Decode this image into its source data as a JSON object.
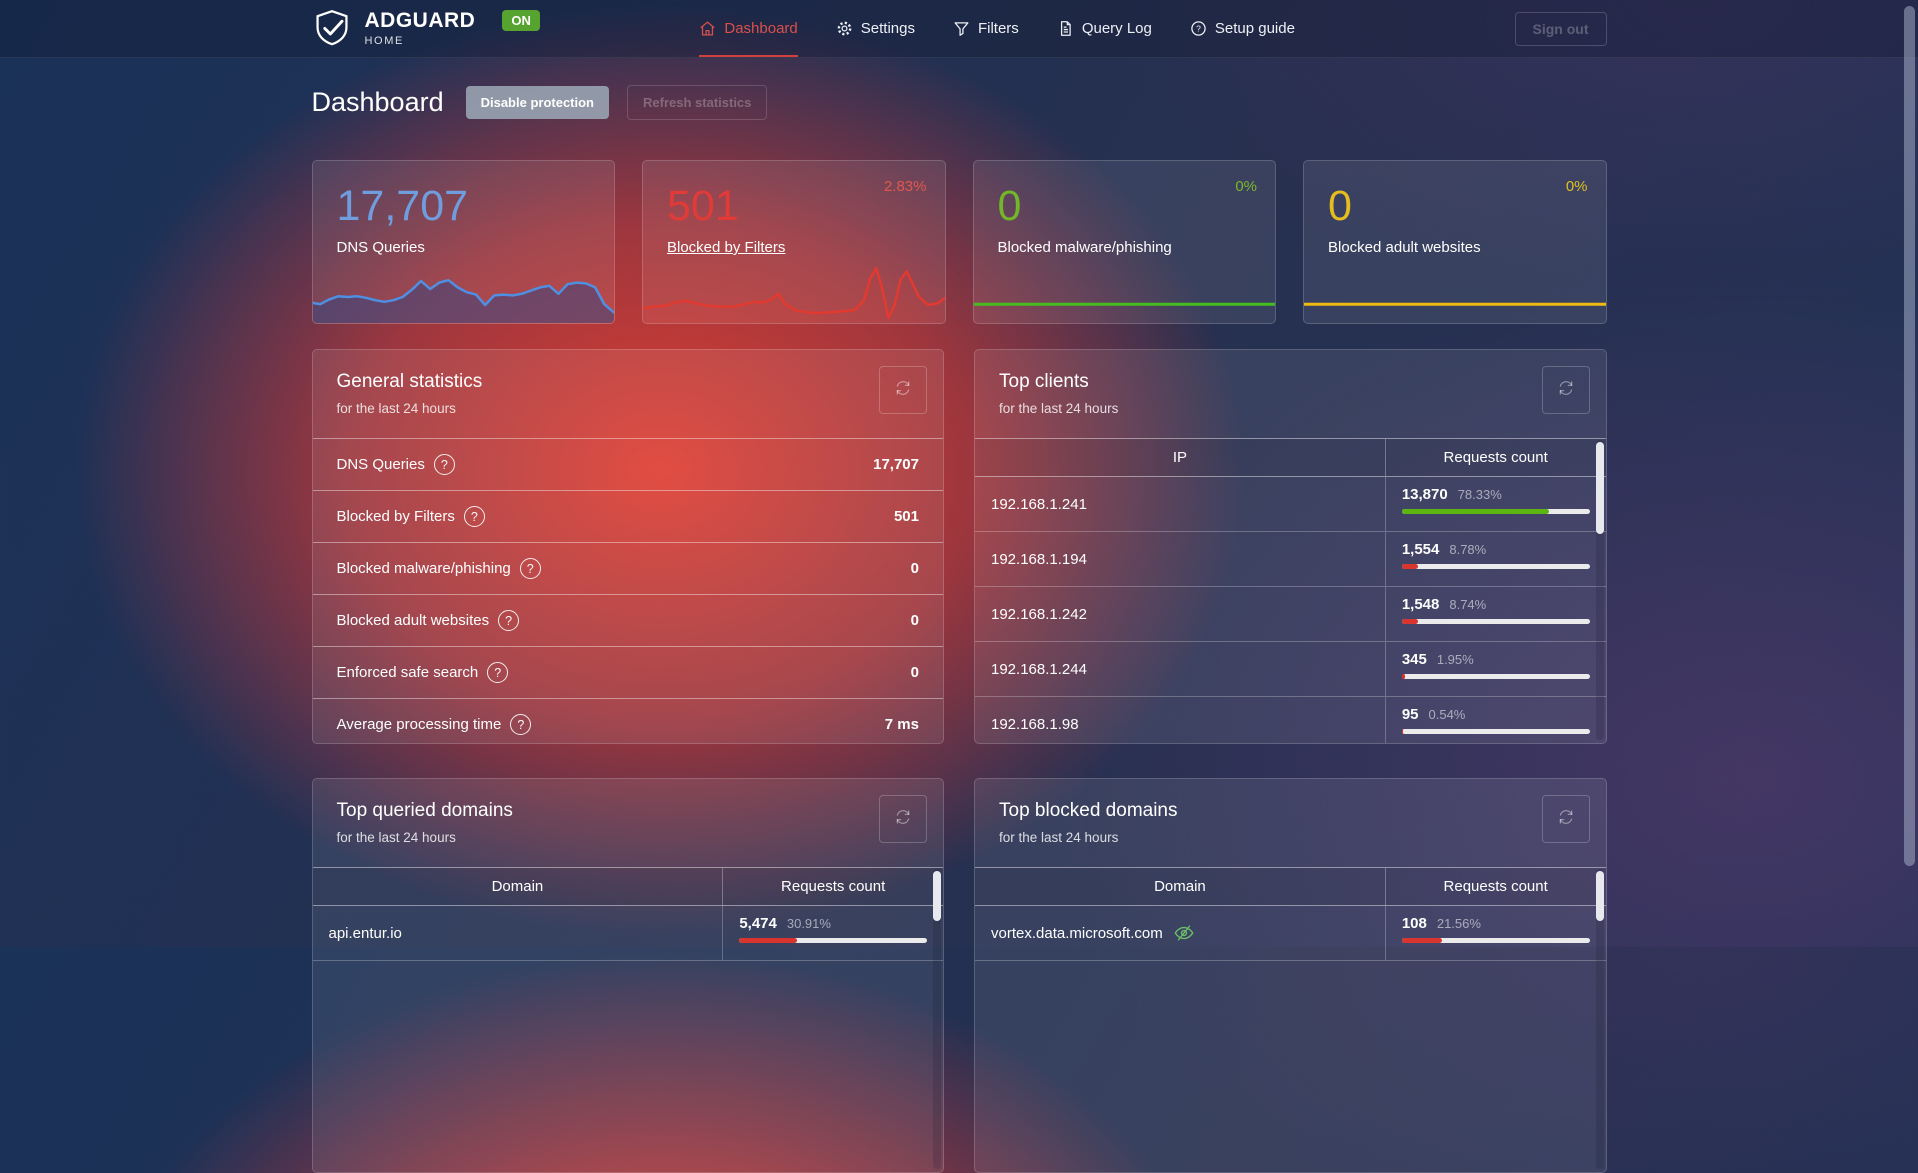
{
  "brand": {
    "name": "ADGUARD",
    "sub": "HOME",
    "status_badge": "ON"
  },
  "nav": {
    "items": [
      {
        "label": "Dashboard",
        "icon": "home-icon",
        "active": true
      },
      {
        "label": "Settings",
        "icon": "gear-icon",
        "active": false
      },
      {
        "label": "Filters",
        "icon": "funnel-icon",
        "active": false
      },
      {
        "label": "Query Log",
        "icon": "document-icon",
        "active": false
      },
      {
        "label": "Setup guide",
        "icon": "help-icon",
        "active": false
      }
    ],
    "signout_label": "Sign out"
  },
  "page": {
    "title": "Dashboard",
    "disable_protection_label": "Disable protection",
    "refresh_statistics_label": "Refresh statistics"
  },
  "colors": {
    "accent_red": "#d0413d",
    "bar_green": "#5cb511",
    "bar_red": "#d8352f",
    "badge_green": "#56a32f",
    "tracker_green": "#6abf69"
  },
  "cards": [
    {
      "value": "17,707",
      "label": "DNS Queries",
      "percent": "",
      "color": "#6f9dde",
      "pct_color": "#6f9dde",
      "spark_line": "#4f8fe3",
      "spark_fill": "rgba(47,68,130,0.5)",
      "spark_stroke": 2.5,
      "spark": [
        [
          0,
          26
        ],
        [
          3,
          27
        ],
        [
          6,
          24
        ],
        [
          9,
          22
        ],
        [
          12,
          22.5
        ],
        [
          15,
          22
        ],
        [
          18,
          23
        ],
        [
          21,
          24.5
        ],
        [
          24,
          25.5
        ],
        [
          27,
          24.5
        ],
        [
          30,
          22.5
        ],
        [
          33,
          18
        ],
        [
          36,
          12.5
        ],
        [
          39,
          17.5
        ],
        [
          42,
          13.5
        ],
        [
          45,
          12
        ],
        [
          48,
          16.5
        ],
        [
          51,
          19.5
        ],
        [
          54,
          21
        ],
        [
          57,
          27.5
        ],
        [
          60,
          21.5
        ],
        [
          63,
          21
        ],
        [
          66,
          21.5
        ],
        [
          69,
          20.5
        ],
        [
          72,
          18.5
        ],
        [
          75,
          16.5
        ],
        [
          78,
          15.5
        ],
        [
          81,
          20.5
        ],
        [
          84,
          14.5
        ],
        [
          87,
          13.5
        ],
        [
          90,
          14
        ],
        [
          93,
          16.5
        ],
        [
          96,
          27
        ],
        [
          100,
          33.5
        ]
      ]
    },
    {
      "value": "501",
      "label": "Blocked by Filters",
      "percent": "2.83%",
      "color": "#e13b38",
      "pct_color": "#e0584f",
      "spark_line": "#e23a30",
      "spark_fill": "rgba(226,58,48,0.12)",
      "spark_stroke": 2.5,
      "spark": [
        [
          0,
          30
        ],
        [
          4,
          28.5
        ],
        [
          8,
          28
        ],
        [
          12,
          25.5
        ],
        [
          15,
          25
        ],
        [
          18,
          26.5
        ],
        [
          22,
          28
        ],
        [
          26,
          28.5
        ],
        [
          30,
          28.5
        ],
        [
          34,
          27
        ],
        [
          37,
          25.5
        ],
        [
          40,
          26
        ],
        [
          43,
          23.5
        ],
        [
          45,
          20.5
        ],
        [
          47,
          26.5
        ],
        [
          50,
          30.5
        ],
        [
          54,
          32
        ],
        [
          58,
          32.5
        ],
        [
          62,
          32
        ],
        [
          66,
          31.5
        ],
        [
          70,
          30.5
        ],
        [
          73,
          24.5
        ],
        [
          75,
          11
        ],
        [
          77,
          4.5
        ],
        [
          79,
          17.5
        ],
        [
          81,
          35.5
        ],
        [
          83,
          27.5
        ],
        [
          85,
          11.5
        ],
        [
          87,
          6.5
        ],
        [
          89,
          14.5
        ],
        [
          91,
          22.5
        ],
        [
          94,
          27.5
        ],
        [
          97,
          26.5
        ],
        [
          100,
          22.5
        ]
      ]
    },
    {
      "value": "0",
      "label": "Blocked malware/phishing",
      "percent": "0%",
      "color": "#72b62a",
      "pct_color": "#7db72c",
      "spark_line": "#46bd1f",
      "spark_fill": "",
      "spark_stroke": 3,
      "spark": [
        [
          0,
          27
        ],
        [
          100,
          27
        ]
      ]
    },
    {
      "value": "0",
      "label": "Blocked adult websites",
      "percent": "0%",
      "color": "#e5bd1e",
      "pct_color": "#ddc01f",
      "spark_line": "#eebb12",
      "spark_fill": "",
      "spark_stroke": 3,
      "spark": [
        [
          0,
          27
        ],
        [
          100,
          27
        ]
      ]
    }
  ],
  "general": {
    "title": "General statistics",
    "subtitle": "for the last 24 hours",
    "rows": [
      {
        "label": "DNS Queries",
        "value": "17,707"
      },
      {
        "label": "Blocked by Filters",
        "value": "501"
      },
      {
        "label": "Blocked malware/phishing",
        "value": "0"
      },
      {
        "label": "Blocked adult websites",
        "value": "0"
      },
      {
        "label": "Enforced safe search",
        "value": "0"
      },
      {
        "label": "Average processing time",
        "value": "7 ms"
      }
    ]
  },
  "top_clients": {
    "title": "Top clients",
    "subtitle": "for the last 24 hours",
    "columns": [
      "IP",
      "Requests count"
    ],
    "rows": [
      {
        "ip": "192.168.1.241",
        "count": "13,870",
        "percent": "78.33%",
        "bar": 78.33,
        "bar_color": "#5cb511"
      },
      {
        "ip": "192.168.1.194",
        "count": "1,554",
        "percent": "8.78%",
        "bar": 8.78,
        "bar_color": "#d8352f"
      },
      {
        "ip": "192.168.1.242",
        "count": "1,548",
        "percent": "8.74%",
        "bar": 8.74,
        "bar_color": "#d8352f"
      },
      {
        "ip": "192.168.1.244",
        "count": "345",
        "percent": "1.95%",
        "bar": 1.95,
        "bar_color": "#d8352f"
      },
      {
        "ip": "192.168.1.98",
        "count": "95",
        "percent": "0.54%",
        "bar": 0.54,
        "bar_color": "#d8352f"
      }
    ]
  },
  "top_queried": {
    "title": "Top queried domains",
    "subtitle": "for the last 24 hours",
    "columns": [
      "Domain",
      "Requests count"
    ],
    "rows": [
      {
        "domain": "api.entur.io",
        "count": "5,474",
        "percent": "30.91%",
        "bar": 30.91,
        "bar_color": "#d8352f"
      }
    ]
  },
  "top_blocked": {
    "title": "Top blocked domains",
    "subtitle": "for the last 24 hours",
    "columns": [
      "Domain",
      "Requests count"
    ],
    "rows": [
      {
        "domain": "vortex.data.microsoft.com",
        "tracker": true,
        "count": "108",
        "percent": "21.56%",
        "bar": 21.56,
        "bar_color": "#d8352f"
      }
    ]
  }
}
